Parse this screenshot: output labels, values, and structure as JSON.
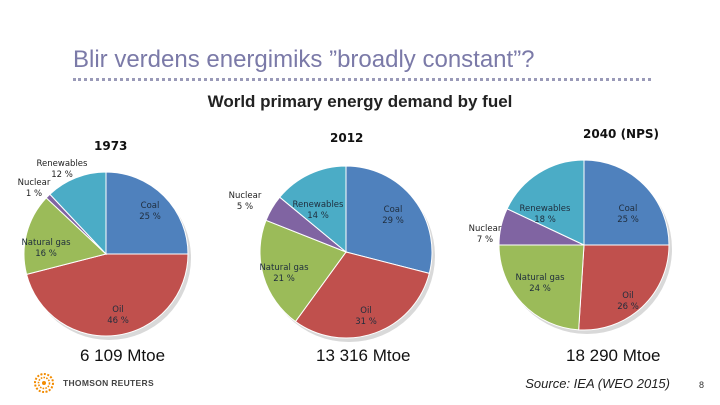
{
  "slide": {
    "title": "Blir verdens energimiks ”broadly constant”?",
    "subtitle": "World primary energy demand by fuel",
    "source": "Source: IEA (WEO 2015)",
    "page_number": "8",
    "logo_text": "THOMSON REUTERS"
  },
  "totals": [
    "6 109 Mtoe",
    "13 316 Mtoe",
    "18 290 Mtoe"
  ],
  "colors": {
    "Coal": "#4f81bd",
    "Oil": "#c0504d",
    "Natural gas": "#9bbb59",
    "Nuclear": "#8064a2",
    "Renewables": "#4bacc6"
  },
  "chart_data": [
    {
      "type": "pie",
      "title": "1973",
      "slices": [
        {
          "label": "Coal",
          "value": 25,
          "text": "25 %"
        },
        {
          "label": "Oil",
          "value": 46,
          "text": "46 %"
        },
        {
          "label": "Natural gas",
          "value": 16,
          "text": "16 %"
        },
        {
          "label": "Nuclear",
          "value": 1,
          "text": "1 %"
        },
        {
          "label": "Renewables",
          "value": 12,
          "text": "12 %"
        }
      ]
    },
    {
      "type": "pie",
      "title": "2012",
      "slices": [
        {
          "label": "Coal",
          "value": 29,
          "text": "29 %"
        },
        {
          "label": "Oil",
          "value": 31,
          "text": "31 %"
        },
        {
          "label": "Natural gas",
          "value": 21,
          "text": "21 %"
        },
        {
          "label": "Nuclear",
          "value": 5,
          "text": "5 %"
        },
        {
          "label": "Renewables",
          "value": 14,
          "text": "14 %"
        }
      ]
    },
    {
      "type": "pie",
      "title": "2040 (NPS)",
      "slices": [
        {
          "label": "Coal",
          "value": 25,
          "text": "25 %"
        },
        {
          "label": "Oil",
          "value": 26,
          "text": "26 %"
        },
        {
          "label": "Natural gas",
          "value": 24,
          "text": "24 %"
        },
        {
          "label": "Nuclear",
          "value": 7,
          "text": "7 %"
        },
        {
          "label": "Renewables",
          "value": 18,
          "text": "18 %"
        }
      ]
    }
  ]
}
